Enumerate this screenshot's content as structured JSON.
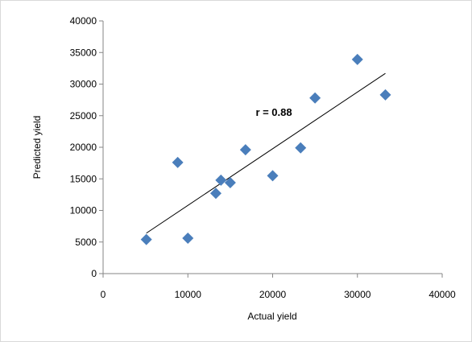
{
  "chart_data": {
    "type": "scatter",
    "title": "",
    "xlabel": "Actual yield",
    "ylabel": "Predicted yield",
    "xlim": [
      0,
      40000
    ],
    "ylim": [
      0,
      40000
    ],
    "x_ticks": [
      0,
      10000,
      20000,
      30000,
      40000
    ],
    "y_ticks": [
      0,
      5000,
      10000,
      15000,
      20000,
      25000,
      30000,
      35000,
      40000
    ],
    "x_tick_labels": [
      "0",
      "10000",
      "20000",
      "30000",
      "40000"
    ],
    "y_tick_labels": [
      "0",
      "5000",
      "10000",
      "15000",
      "20000",
      "25000",
      "30000",
      "35000",
      "40000"
    ],
    "grid": false,
    "legend": "none",
    "marker": "diamond",
    "marker_color": "#4a7ebb",
    "points": [
      {
        "x": 5100,
        "y": 5400
      },
      {
        "x": 8800,
        "y": 17600
      },
      {
        "x": 10000,
        "y": 5600
      },
      {
        "x": 13300,
        "y": 12700
      },
      {
        "x": 13900,
        "y": 14800
      },
      {
        "x": 15000,
        "y": 14400
      },
      {
        "x": 16800,
        "y": 19600
      },
      {
        "x": 20000,
        "y": 15500
      },
      {
        "x": 23300,
        "y": 19900
      },
      {
        "x": 25000,
        "y": 27800
      },
      {
        "x": 30000,
        "y": 33900
      },
      {
        "x": 33300,
        "y": 28300
      }
    ],
    "trendline": {
      "type": "linear",
      "color": "#000000",
      "start": {
        "x": 5100,
        "y": 6400
      },
      "end": {
        "x": 33300,
        "y": 31700
      }
    },
    "annotation": {
      "text": "r = 0.88",
      "x": 18000,
      "y": 25000
    }
  }
}
